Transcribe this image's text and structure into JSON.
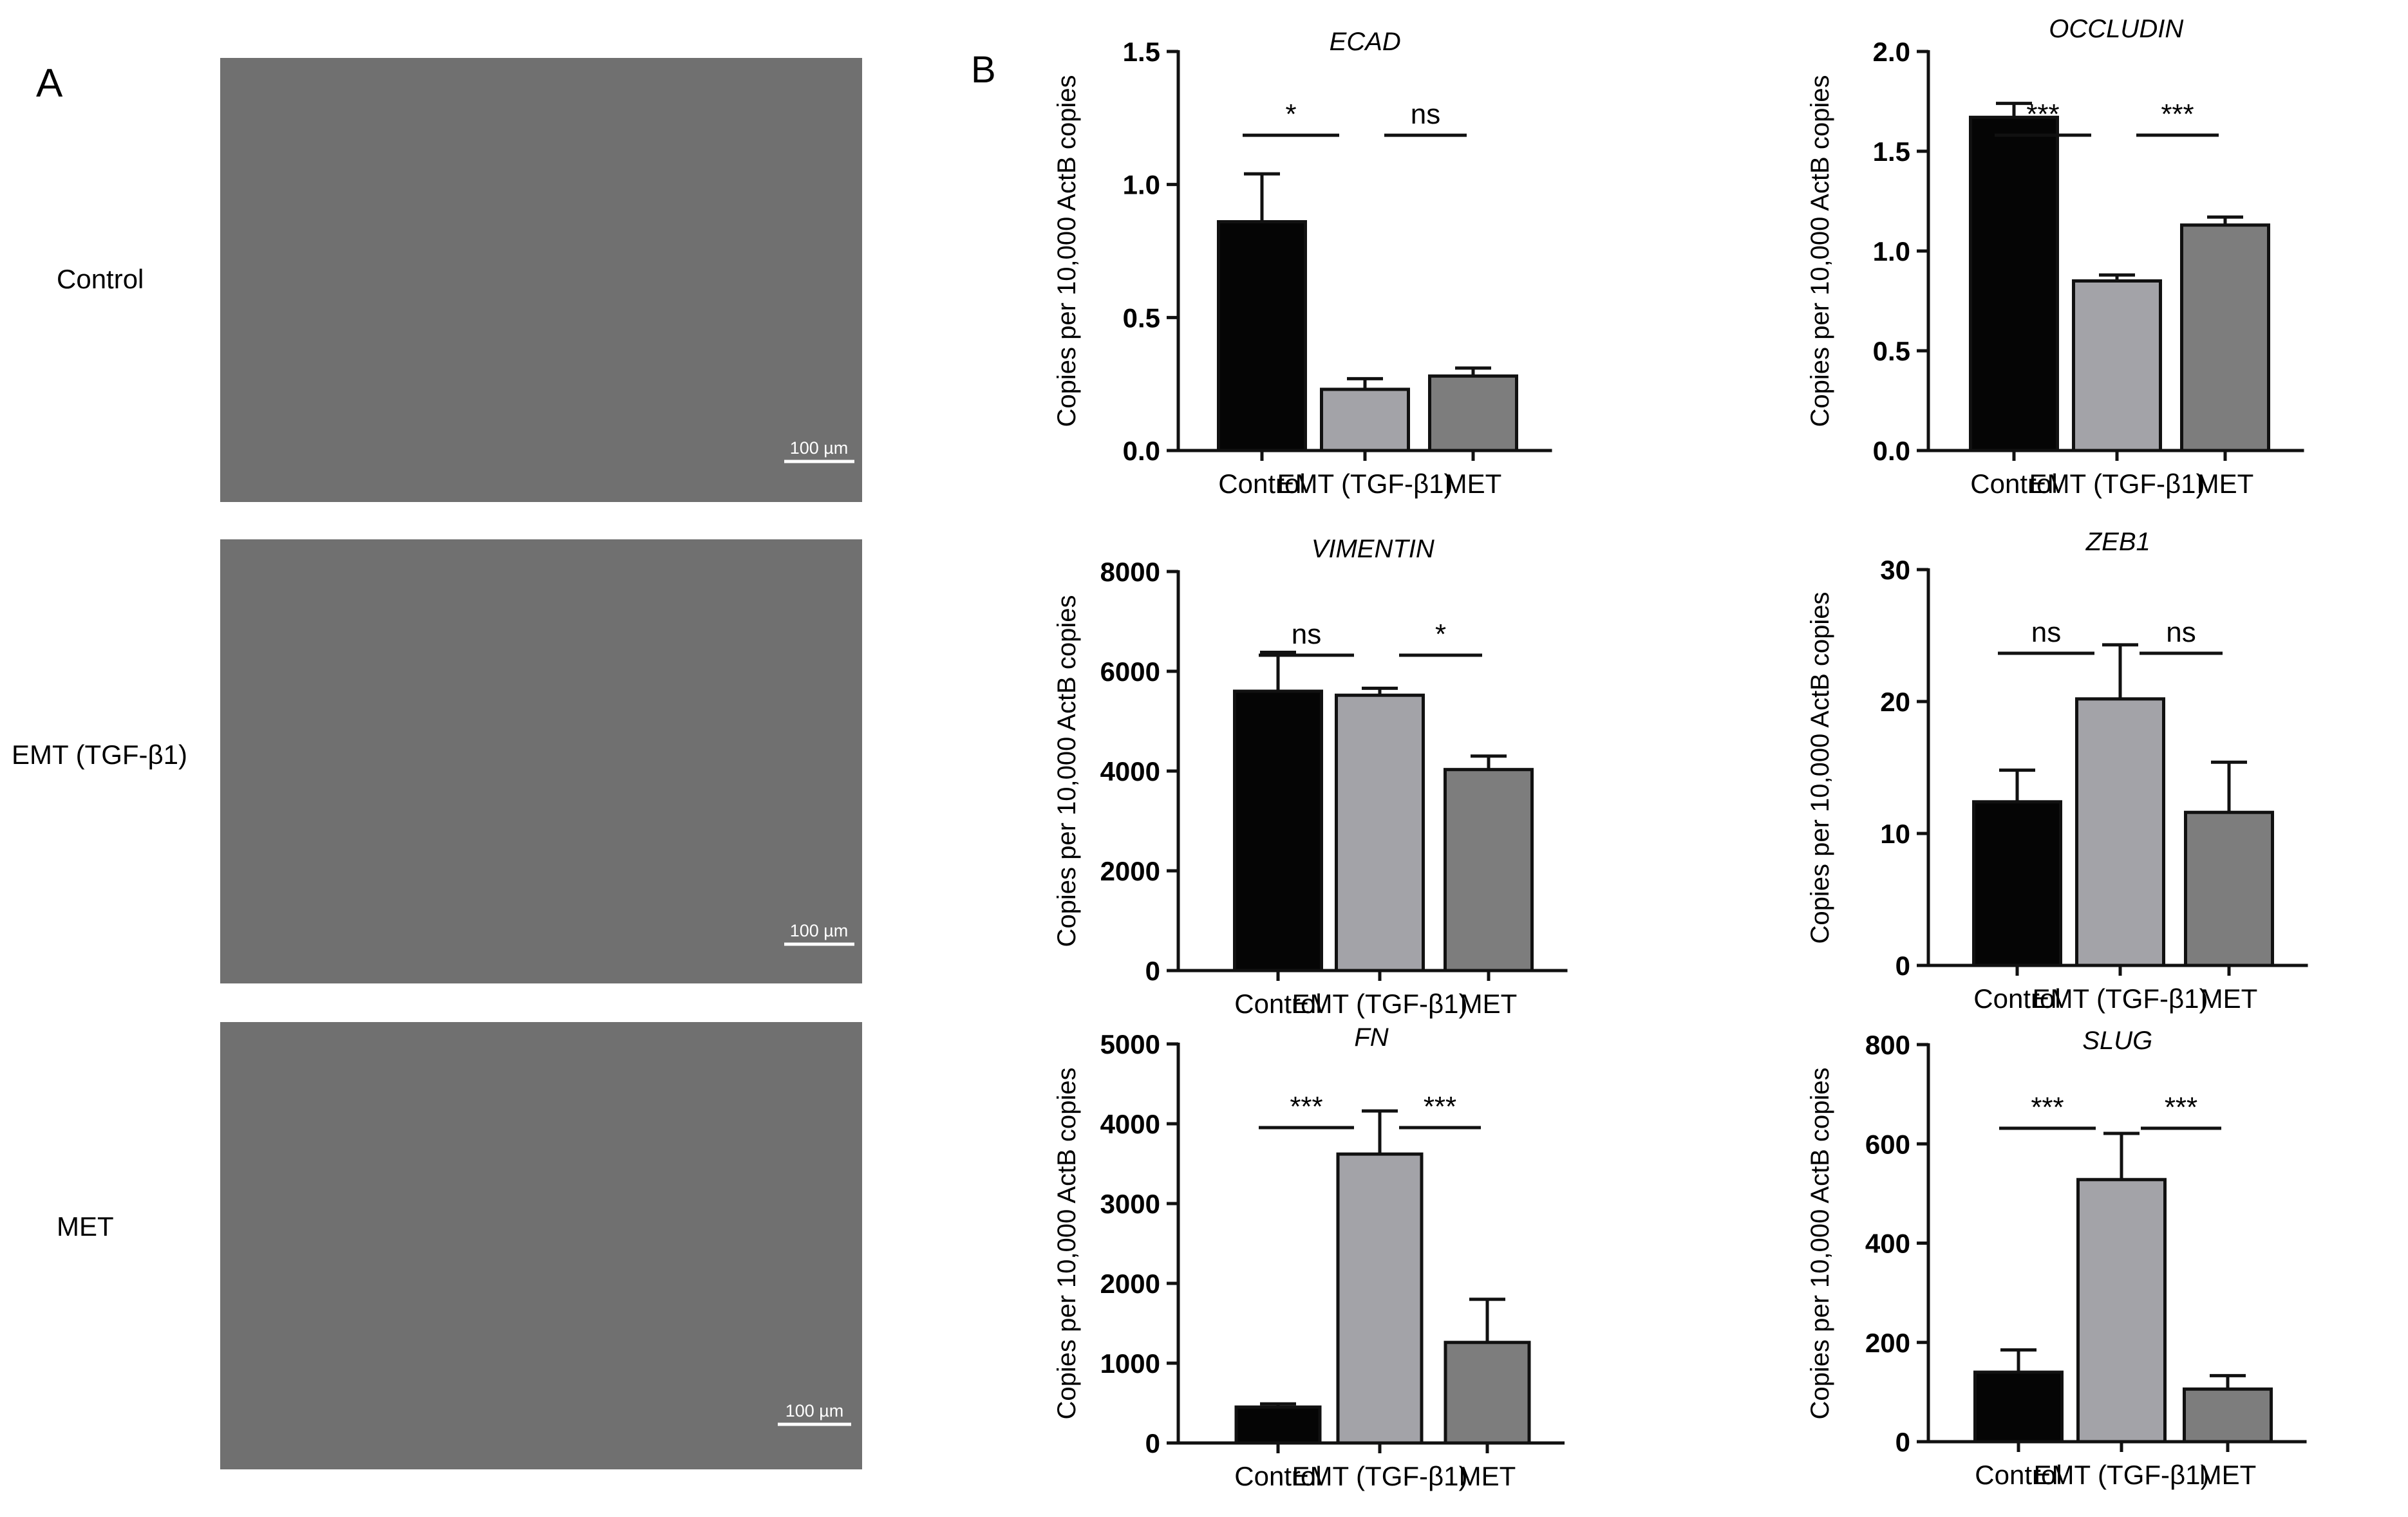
{
  "panels": {
    "a_label": "A",
    "b_label": "B",
    "micrographs": [
      {
        "row_label": "Control",
        "scale_bar": "100 µm"
      },
      {
        "row_label": "EMT (TGF-β1)",
        "scale_bar": "100 µm"
      },
      {
        "row_label": "MET",
        "scale_bar": "100 µm"
      }
    ]
  },
  "colors": {
    "Control": "#050505",
    "EMT (TGF-β1)": "#a3a3a8",
    "MET": "#7d7d7d",
    "micrograph": "#6e6e6e"
  },
  "chart_data": [
    {
      "type": "bar",
      "title": "ECAD",
      "ylabel": "Copies per 10,000 ActB copies",
      "categories": [
        "Control",
        "EMT (TGF-β1)",
        "MET"
      ],
      "values": [
        0.86,
        0.23,
        0.28
      ],
      "errors": [
        0.18,
        0.04,
        0.03
      ],
      "ylim": [
        0,
        1.5
      ],
      "yticks": [
        "0.0",
        "0.5",
        "1.0",
        "1.5"
      ],
      "significance": [
        "*",
        "ns"
      ]
    },
    {
      "type": "bar",
      "title": "OCCLUDIN",
      "ylabel": "Copies per 10,000 ActB copies",
      "categories": [
        "Control",
        "EMT (TGF-β1)",
        "MET"
      ],
      "values": [
        1.67,
        0.85,
        1.13
      ],
      "errors": [
        0.07,
        0.03,
        0.04
      ],
      "ylim": [
        0,
        2.0
      ],
      "yticks": [
        "0.0",
        "0.5",
        "1.0",
        "1.5",
        "2.0"
      ],
      "significance": [
        "***",
        "***"
      ]
    },
    {
      "type": "bar",
      "title": "VIMENTIN",
      "ylabel": "Copies per 10,000 ActB copies",
      "categories": [
        "Control",
        "EMT (TGF-β1)",
        "MET"
      ],
      "values": [
        5600,
        5520,
        4030
      ],
      "errors": [
        780,
        140,
        270
      ],
      "ylim": [
        0,
        8000
      ],
      "yticks": [
        "0",
        "2000",
        "4000",
        "6000",
        "8000"
      ],
      "significance": [
        "ns",
        "*"
      ]
    },
    {
      "type": "bar",
      "title": "ZEB1",
      "ylabel": "Copies per 10,000 ActB copies",
      "categories": [
        "Control",
        "EMT (TGF-β1)",
        "MET"
      ],
      "values": [
        12.4,
        20.2,
        11.6
      ],
      "errors": [
        2.4,
        4.1,
        3.8
      ],
      "ylim": [
        0,
        30
      ],
      "yticks": [
        "0",
        "10",
        "20",
        "30"
      ],
      "significance": [
        "ns",
        "ns"
      ]
    },
    {
      "type": "bar",
      "title": "FN",
      "ylabel": "Copies per 10,000 ActB copies",
      "categories": [
        "Control",
        "EMT (TGF-β1)",
        "MET"
      ],
      "values": [
        450,
        3620,
        1260
      ],
      "errors": [
        40,
        540,
        540
      ],
      "ylim": [
        0,
        5000
      ],
      "yticks": [
        "0",
        "1000",
        "2000",
        "3000",
        "4000",
        "5000"
      ],
      "significance": [
        "***",
        "***"
      ]
    },
    {
      "type": "bar",
      "title": "SLUG",
      "ylabel": "Copies per 10,000 ActB copies",
      "categories": [
        "Control",
        "EMT (TGF-β1)",
        "MET"
      ],
      "values": [
        140,
        528,
        106
      ],
      "errors": [
        45,
        93,
        27
      ],
      "ylim": [
        0,
        800
      ],
      "yticks": [
        "0",
        "200",
        "400",
        "600",
        "800"
      ],
      "significance": [
        "***",
        "***"
      ]
    }
  ]
}
